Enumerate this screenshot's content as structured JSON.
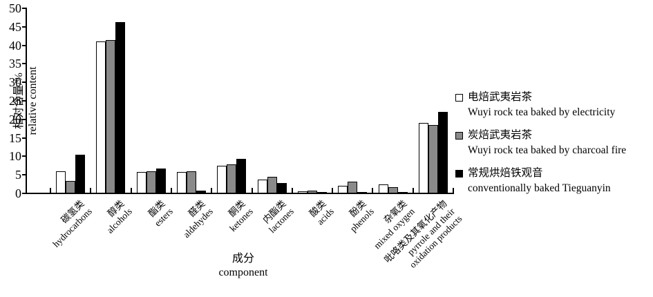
{
  "chart_data": {
    "type": "bar",
    "title": "",
    "ylabel": {
      "zh": "相对含量/%",
      "en": "relative content"
    },
    "xlabel": {
      "zh": "成分",
      "en": "component"
    },
    "ylim": [
      0,
      50
    ],
    "ytick_step": 5,
    "grid": false,
    "legend_position": "right",
    "categories": [
      {
        "zh": "碳氢类",
        "en": "hydrocarbons"
      },
      {
        "zh": "醇类",
        "en": "alcohols"
      },
      {
        "zh": "酯类",
        "en": "esters"
      },
      {
        "zh": "醛类",
        "en": "aldehydes"
      },
      {
        "zh": "酮类",
        "en": "ketones"
      },
      {
        "zh": "内酯类",
        "en": "lactones"
      },
      {
        "zh": "酸类",
        "en": "acids"
      },
      {
        "zh": "酚类",
        "en": "phenols"
      },
      {
        "zh": "杂氧类",
        "en": "mixed oxygen"
      },
      {
        "zh": "吡咯类及其氧化产物",
        "en": "pyrrole and their\noxidation products"
      }
    ],
    "series": [
      {
        "name_zh": "电焙武夷岩茶",
        "name_en": "Wuyi rock tea baked by electricity",
        "fill": "#ffffff",
        "values": [
          6.0,
          41.0,
          5.7,
          5.7,
          7.5,
          3.8,
          0.6,
          2.1,
          2.4,
          19.0
        ]
      },
      {
        "name_zh": "炭焙武夷岩茶",
        "name_en": "Wuyi rock tea baked by charcoal fire",
        "fill": "#8a8a8a",
        "values": [
          3.3,
          41.5,
          5.9,
          5.9,
          7.9,
          4.4,
          0.7,
          3.2,
          1.6,
          18.4
        ]
      },
      {
        "name_zh": "常规烘焙铁观音",
        "name_en": "conventionally baked Tieguanyin",
        "fill": "#000000",
        "values": [
          10.5,
          46.2,
          6.8,
          0.8,
          9.3,
          2.8,
          0.3,
          0.4,
          0.4,
          22.0
        ]
      }
    ]
  }
}
